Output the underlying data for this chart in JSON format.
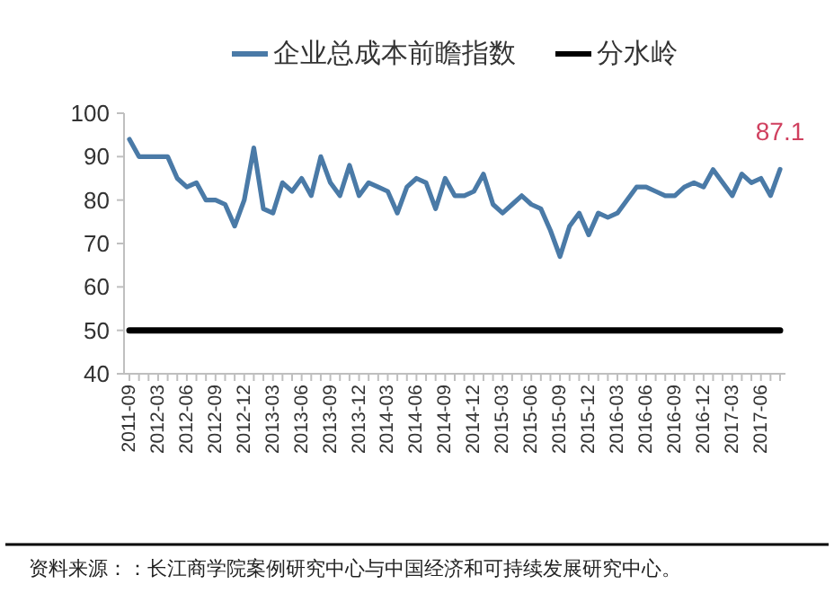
{
  "chart_data": {
    "type": "line",
    "categories": [
      "2011-09",
      null,
      null,
      "2012-03",
      null,
      null,
      "2012-06",
      null,
      null,
      "2012-09",
      null,
      null,
      "2012-12",
      null,
      null,
      "2013-03",
      null,
      null,
      "2013-06",
      null,
      null,
      "2013-09",
      null,
      null,
      "2013-12",
      null,
      null,
      "2014-03",
      null,
      null,
      "2014-06",
      null,
      null,
      "2014-09",
      null,
      null,
      "2014-12",
      null,
      null,
      "2015-03",
      null,
      null,
      "2015-06",
      null,
      null,
      "2015-09",
      null,
      null,
      "2015-12",
      null,
      null,
      "2016-03",
      null,
      null,
      "2016-06",
      null,
      null,
      "2016-09",
      null,
      null,
      "2016-12",
      null,
      null,
      "2017-03",
      null,
      null,
      "2017-06",
      null,
      null
    ],
    "series": [
      {
        "name": "企业总成本前瞻指数",
        "color": "#4a7aa7",
        "values": [
          94,
          90,
          90,
          90,
          90,
          85,
          83,
          84,
          80,
          80,
          79,
          74,
          80,
          92,
          78,
          77,
          84,
          82,
          85,
          81,
          90,
          84,
          81,
          88,
          81,
          84,
          83,
          82,
          77,
          83,
          85,
          84,
          78,
          85,
          81,
          81,
          82,
          86,
          79,
          77,
          79,
          81,
          79,
          78,
          73,
          67,
          74,
          77,
          72,
          77,
          76,
          77,
          80,
          83,
          83,
          82,
          81,
          81,
          83,
          84,
          83,
          87,
          84,
          81,
          86,
          84,
          85,
          81,
          87.1
        ],
        "value_labels": [
          null,
          null,
          null,
          null,
          null,
          null,
          null,
          null,
          null,
          null,
          null,
          null,
          null,
          null,
          null,
          null,
          null,
          null,
          null,
          null,
          null,
          null,
          null,
          null,
          null,
          null,
          null,
          null,
          null,
          null,
          null,
          null,
          null,
          null,
          null,
          null,
          null,
          null,
          null,
          null,
          null,
          null,
          null,
          null,
          null,
          null,
          null,
          null,
          null,
          null,
          null,
          null,
          null,
          null,
          null,
          null,
          null,
          null,
          null,
          null,
          null,
          null,
          null,
          null,
          null,
          null,
          null,
          null,
          "87.1"
        ]
      },
      {
        "name": "分水岭",
        "color": "#000000",
        "values": [
          50,
          50,
          50,
          50,
          50,
          50,
          50,
          50,
          50,
          50,
          50,
          50,
          50,
          50,
          50,
          50,
          50,
          50,
          50,
          50,
          50,
          50,
          50,
          50,
          50,
          50,
          50,
          50,
          50,
          50,
          50,
          50,
          50,
          50,
          50,
          50,
          50,
          50,
          50,
          50,
          50,
          50,
          50,
          50,
          50,
          50,
          50,
          50,
          50,
          50,
          50,
          50,
          50,
          50,
          50,
          50,
          50,
          50,
          50,
          50,
          50,
          50,
          50,
          50,
          50,
          50,
          50,
          50,
          50
        ]
      }
    ],
    "ylim": [
      40,
      100
    ],
    "yticks": [
      40,
      50,
      60,
      70,
      80,
      90,
      100
    ],
    "legend": "top",
    "grid": false,
    "annotations": [
      "资料来源：：长江商学院案例研究中心与中国经济和可持续发展研究中心。"
    ]
  }
}
